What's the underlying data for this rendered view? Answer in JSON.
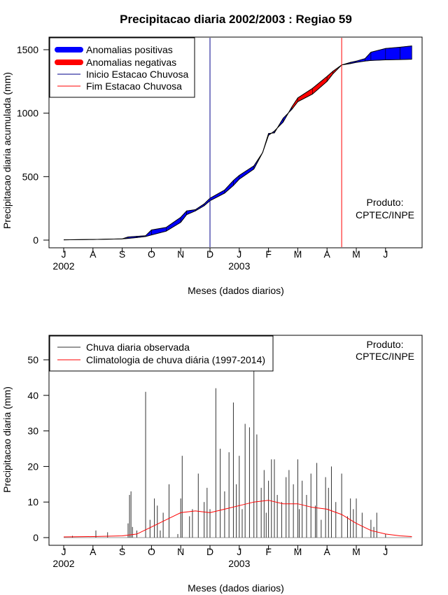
{
  "title": "Precipitacao diaria 2002/2003 : Regiao 59",
  "chart_data": [
    {
      "type": "area",
      "ylabel": "Precipitacao diaria acumulada (mm)",
      "xlabel": "Meses (dados diarios)",
      "ylim": [
        0,
        1600
      ],
      "yticks": [
        0,
        500,
        1000,
        1500
      ],
      "xticks": [
        "J",
        "A",
        "S",
        "O",
        "N",
        "D",
        "J",
        "F",
        "M",
        "A",
        "M",
        "J"
      ],
      "year_labels": [
        {
          "label": "2002",
          "month_index": 0
        },
        {
          "label": "2003",
          "month_index": 6
        }
      ],
      "legend": [
        {
          "label": "Anomalias positivas",
          "color": "#0000ff",
          "kind": "thick"
        },
        {
          "label": "Anomalias negativas",
          "color": "#ff0000",
          "kind": "thick"
        },
        {
          "label": "Inicio Estacao Chuvosa",
          "color": "#00008b",
          "kind": "thin"
        },
        {
          "label": "Fim Estacao Chuvosa",
          "color": "#ff0000",
          "kind": "thin"
        }
      ],
      "rainy_season_start_month": 5.0,
      "rainy_season_end_month": 9.5,
      "observed_cumulative": {
        "month": [
          0,
          1,
          2,
          2.2,
          2.5,
          2.8,
          3,
          3.5,
          4,
          4.2,
          4.5,
          4.8,
          5,
          5.5,
          5.8,
          6,
          6.5,
          6.8,
          7,
          7.2,
          7.5,
          7.8,
          8,
          8.5,
          9,
          9.2,
          9.5,
          9.8,
          10,
          10.3,
          10.5,
          11,
          11.5,
          11.9
        ],
        "mm": [
          2,
          5,
          10,
          25,
          30,
          35,
          80,
          100,
          180,
          230,
          240,
          285,
          330,
          395,
          470,
          510,
          585,
          690,
          840,
          845,
          960,
          1030,
          1090,
          1150,
          1250,
          1310,
          1380,
          1400,
          1410,
          1430,
          1480,
          1510,
          1520,
          1530
        ]
      },
      "climatology_cumulative": {
        "month": [
          0,
          1,
          2,
          2.2,
          2.5,
          2.8,
          3,
          3.5,
          4,
          4.2,
          4.5,
          4.8,
          5,
          5.5,
          5.8,
          6,
          6.5,
          6.8,
          7,
          7.2,
          7.5,
          7.8,
          8,
          8.5,
          9,
          9.2,
          9.5,
          9.8,
          10,
          10.3,
          10.5,
          11,
          11.5,
          11.9
        ],
        "mm": [
          2,
          5,
          10,
          13,
          20,
          28,
          40,
          70,
          140,
          200,
          230,
          270,
          310,
          370,
          430,
          480,
          560,
          690,
          825,
          860,
          930,
          1050,
          1120,
          1195,
          1290,
          1330,
          1380,
          1390,
          1400,
          1410,
          1415,
          1420,
          1422,
          1425
        ]
      },
      "annotation": [
        "Produto:",
        "CPTEC/INPE"
      ]
    },
    {
      "type": "bar",
      "ylabel": "Precipitacao diaria (mm)",
      "xlabel": "Meses (dados diarios)",
      "ylim": [
        0,
        55
      ],
      "yticks": [
        0,
        10,
        20,
        30,
        40,
        50
      ],
      "xticks": [
        "J",
        "A",
        "S",
        "O",
        "N",
        "D",
        "J",
        "F",
        "M",
        "A",
        "M",
        "J"
      ],
      "year_labels": [
        {
          "label": "2002",
          "month_index": 0
        },
        {
          "label": "2003",
          "month_index": 6
        }
      ],
      "legend": [
        {
          "label": "Chuva diaria observada",
          "color": "#333333",
          "kind": "thin"
        },
        {
          "label": "Climatologia de chuva diária (1997-2014)",
          "color": "#ff0000",
          "kind": "thin"
        }
      ],
      "daily_observed": {
        "month": [
          0.3,
          1.1,
          1.5,
          2.2,
          2.25,
          2.3,
          2.35,
          2.5,
          2.8,
          2.95,
          3.1,
          3.2,
          3.3,
          3.4,
          3.6,
          3.9,
          4.0,
          4.05,
          4.3,
          4.4,
          4.6,
          4.8,
          4.9,
          5.0,
          5.2,
          5.35,
          5.5,
          5.65,
          5.8,
          5.9,
          6.0,
          6.1,
          6.2,
          6.35,
          6.5,
          6.6,
          6.75,
          6.85,
          6.92,
          7.0,
          7.1,
          7.2,
          7.3,
          7.45,
          7.6,
          7.7,
          7.85,
          8.0,
          8.05,
          8.15,
          8.3,
          8.45,
          8.6,
          8.65,
          8.8,
          8.95,
          9.05,
          9.15,
          9.3,
          9.5,
          9.7,
          9.8,
          9.9,
          10.0,
          10.2,
          10.5,
          10.6,
          10.7,
          11.0
        ],
        "mm": [
          0.5,
          2,
          1.5,
          4,
          12,
          13,
          3,
          2,
          41,
          5,
          11,
          9,
          2,
          7,
          15,
          1,
          11,
          23,
          6,
          8,
          18,
          10,
          14,
          8,
          42,
          25,
          13,
          24,
          38,
          15,
          23,
          8,
          32,
          31,
          47,
          29,
          14,
          19,
          7,
          16,
          22,
          22,
          12,
          10,
          17,
          19,
          15,
          22,
          8,
          16,
          12,
          18,
          9,
          21,
          5,
          17,
          14,
          20,
          10,
          18,
          6,
          11,
          8,
          11,
          7,
          5,
          3,
          7,
          1
        ]
      },
      "climatology_daily": {
        "month": [
          0,
          1,
          2,
          2.5,
          3,
          3.5,
          4,
          4.5,
          5,
          5.5,
          6,
          6.5,
          7,
          7.5,
          8,
          8.5,
          9,
          9.5,
          10,
          10.5,
          11,
          11.5,
          11.9
        ],
        "mm": [
          0.2,
          0.3,
          0.5,
          1.0,
          3.0,
          5.0,
          7.0,
          7.5,
          7.0,
          8.0,
          9.0,
          10.0,
          10.5,
          9.5,
          9.5,
          8.5,
          8.0,
          6.5,
          4.0,
          2.0,
          1.0,
          0.5,
          0.3
        ]
      },
      "annotation": [
        "Produto:",
        "CPTEC/INPE"
      ]
    }
  ]
}
